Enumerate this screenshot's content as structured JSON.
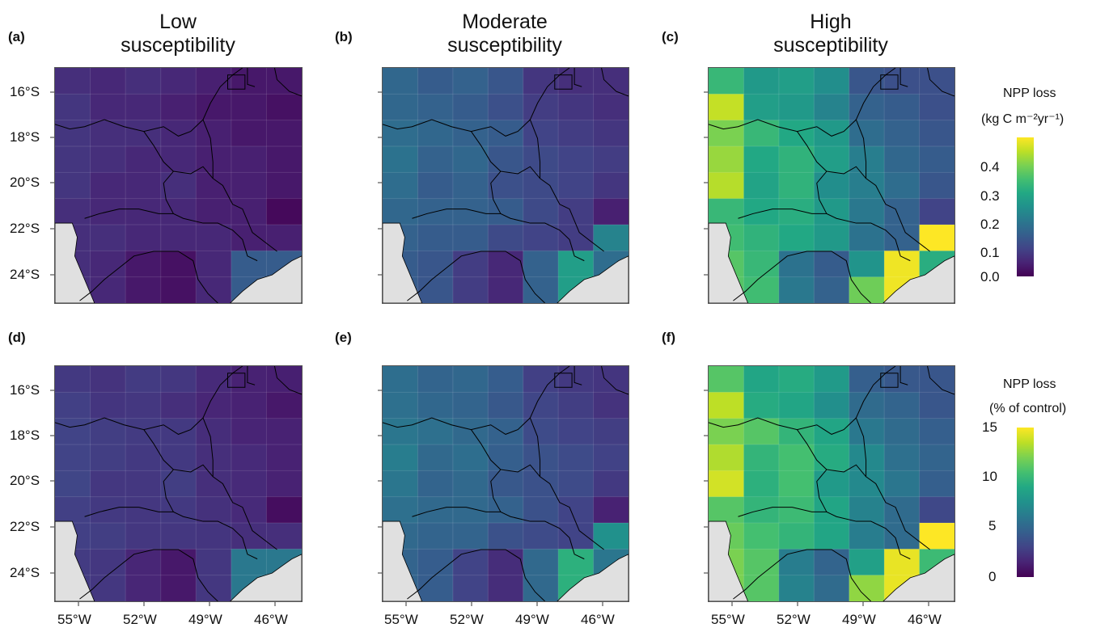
{
  "column_titles": [
    {
      "line1": "Low",
      "line2": "susceptibility"
    },
    {
      "line1": "Moderate",
      "line2": "susceptibility"
    },
    {
      "line1": "High",
      "line2": "susceptibility"
    }
  ],
  "panel_letters": [
    "(a)",
    "(b)",
    "(c)",
    "(d)",
    "(e)",
    "(f)"
  ],
  "y_axis_labels": [
    "16°S",
    "18°S",
    "20°S",
    "22°S",
    "24°S"
  ],
  "x_axis_labels": [
    "55°W",
    "52°W",
    "49°W",
    "46°W"
  ],
  "colorbars": [
    {
      "title_line1": "NPP loss",
      "title_line2": "(kg C m⁻²yr⁻¹)",
      "ticks": [
        "0.4",
        "0.3",
        "0.2",
        "0.1",
        "0.0"
      ],
      "range": [
        0,
        0.45
      ],
      "colormap": "viridis"
    },
    {
      "title_line1": "NPP loss",
      "title_line2": "(% of control)",
      "ticks": [
        "15",
        "10",
        "5",
        "0"
      ],
      "range": [
        0,
        15
      ],
      "colormap": "viridis"
    }
  ],
  "colors": {
    "land_outside": "#e0e0e0",
    "border_lines": "#000000",
    "viridis_low": "#440154",
    "viridis_mid": "#21918c",
    "viridis_high": "#fde725"
  },
  "grids": {
    "low_abs": [
      [
        0.06,
        0.05,
        0.06,
        0.05,
        0.04,
        0.03,
        0.03
      ],
      [
        0.07,
        0.05,
        0.05,
        0.04,
        0.03,
        0.03,
        0.02
      ],
      [
        0.07,
        0.06,
        0.06,
        0.05,
        0.04,
        0.03,
        0.03
      ],
      [
        0.07,
        0.06,
        0.05,
        0.05,
        0.04,
        0.04,
        0.03
      ],
      [
        0.07,
        0.05,
        0.05,
        0.06,
        0.04,
        0.04,
        0.03
      ],
      [
        0.06,
        0.05,
        0.05,
        0.05,
        0.04,
        0.04,
        0.01
      ],
      [
        0.06,
        0.06,
        0.05,
        0.05,
        0.05,
        0.04,
        0.04
      ],
      [
        0.06,
        0.05,
        0.03,
        0.02,
        0.05,
        0.13,
        0.13
      ],
      [
        0.06,
        0.05,
        0.03,
        0.02,
        0.05,
        0.13,
        0.13
      ]
    ],
    "mod_abs": [
      [
        0.15,
        0.13,
        0.14,
        0.12,
        0.07,
        0.06,
        0.06
      ],
      [
        0.15,
        0.14,
        0.13,
        0.11,
        0.08,
        0.07,
        0.06
      ],
      [
        0.16,
        0.15,
        0.14,
        0.13,
        0.09,
        0.08,
        0.07
      ],
      [
        0.17,
        0.14,
        0.15,
        0.12,
        0.1,
        0.09,
        0.08
      ],
      [
        0.16,
        0.13,
        0.14,
        0.11,
        0.1,
        0.09,
        0.07
      ],
      [
        0.15,
        0.14,
        0.14,
        0.13,
        0.1,
        0.08,
        0.04
      ],
      [
        0.14,
        0.13,
        0.13,
        0.1,
        0.09,
        0.08,
        0.2
      ],
      [
        0.13,
        0.12,
        0.08,
        0.05,
        0.14,
        0.25,
        0.16
      ],
      [
        0.13,
        0.12,
        0.08,
        0.05,
        0.14,
        0.25,
        0.16
      ]
    ],
    "high_abs": [
      [
        0.3,
        0.24,
        0.25,
        0.22,
        0.12,
        0.11,
        0.11
      ],
      [
        0.41,
        0.25,
        0.24,
        0.2,
        0.14,
        0.13,
        0.11
      ],
      [
        0.36,
        0.3,
        0.27,
        0.24,
        0.16,
        0.14,
        0.12
      ],
      [
        0.38,
        0.27,
        0.29,
        0.25,
        0.19,
        0.15,
        0.13
      ],
      [
        0.4,
        0.26,
        0.29,
        0.22,
        0.19,
        0.16,
        0.12
      ],
      [
        0.3,
        0.27,
        0.28,
        0.24,
        0.18,
        0.14,
        0.09
      ],
      [
        0.31,
        0.29,
        0.27,
        0.24,
        0.17,
        0.14,
        0.45
      ],
      [
        0.33,
        0.3,
        0.17,
        0.13,
        0.23,
        0.44,
        0.28
      ],
      [
        0.33,
        0.31,
        0.18,
        0.14,
        0.35,
        0.44,
        0.28
      ]
    ],
    "low_pct": [
      [
        2.5,
        2.2,
        2.6,
        2.4,
        1.8,
        1.4,
        1.3
      ],
      [
        2.8,
        2.3,
        2.4,
        2.0,
        1.6,
        1.4,
        1.0
      ],
      [
        3.0,
        2.7,
        2.6,
        2.5,
        1.9,
        1.5,
        1.4
      ],
      [
        3.0,
        2.7,
        2.5,
        2.5,
        2.0,
        1.8,
        1.4
      ],
      [
        3.1,
        2.4,
        2.4,
        2.7,
        2.0,
        1.8,
        1.4
      ],
      [
        2.8,
        2.5,
        2.4,
        2.5,
        2.1,
        1.8,
        0.5
      ],
      [
        2.8,
        2.7,
        2.4,
        2.4,
        2.3,
        2.0,
        2.0
      ],
      [
        2.6,
        2.4,
        1.6,
        1.0,
        2.4,
        6.0,
        6.0
      ],
      [
        2.6,
        2.4,
        1.6,
        1.0,
        2.4,
        6.0,
        6.0
      ]
    ],
    "mod_pct": [
      [
        5.4,
        4.8,
        5.0,
        4.4,
        2.8,
        2.5,
        2.3
      ],
      [
        5.5,
        5.0,
        4.8,
        4.1,
        3.1,
        2.7,
        2.2
      ],
      [
        5.9,
        5.5,
        5.1,
        4.7,
        3.4,
        3.0,
        2.7
      ],
      [
        6.3,
        5.1,
        5.4,
        4.5,
        3.8,
        3.4,
        2.9
      ],
      [
        5.9,
        4.8,
        5.1,
        4.1,
        3.7,
        3.4,
        2.5
      ],
      [
        5.5,
        5.1,
        5.1,
        4.7,
        3.7,
        3.0,
        1.4
      ],
      [
        5.1,
        4.8,
        4.8,
        3.7,
        3.4,
        3.0,
        7.5
      ],
      [
        4.8,
        4.4,
        3.0,
        1.9,
        5.1,
        9.5,
        5.9
      ],
      [
        4.8,
        4.4,
        3.0,
        1.9,
        5.1,
        9.5,
        5.9
      ]
    ],
    "high_pct": [
      [
        11.0,
        8.8,
        9.2,
        8.1,
        4.5,
        4.1,
        4.0
      ],
      [
        13.5,
        9.2,
        8.8,
        7.4,
        5.2,
        4.8,
        4.0
      ],
      [
        12.0,
        11.0,
        9.8,
        8.8,
        6.0,
        5.2,
        4.5
      ],
      [
        13.2,
        9.8,
        10.5,
        9.2,
        7.0,
        5.5,
        4.8
      ],
      [
        14.0,
        9.5,
        10.5,
        8.1,
        7.0,
        5.9,
        4.5
      ],
      [
        11.0,
        9.8,
        10.2,
        8.8,
        6.6,
        5.2,
        3.2
      ],
      [
        11.5,
        10.5,
        9.8,
        8.8,
        6.3,
        5.2,
        15.0
      ],
      [
        12.0,
        11.0,
        6.3,
        4.8,
        8.5,
        14.5,
        10.2
      ],
      [
        12.0,
        11.0,
        6.6,
        5.2,
        12.5,
        14.5,
        10.2
      ]
    ]
  }
}
